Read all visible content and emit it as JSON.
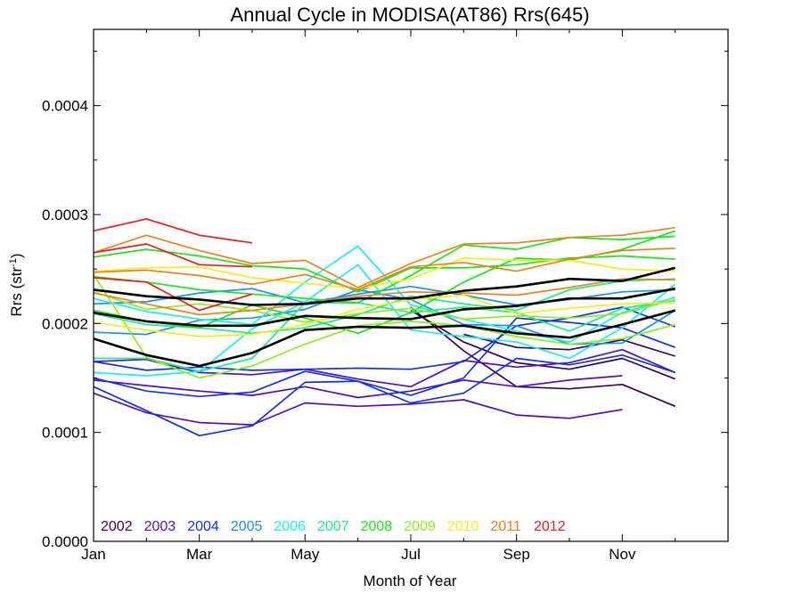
{
  "chart_data": {
    "type": "line",
    "title": "Annual Cycle in MODISA(AT86) Rrs(645)",
    "xlabel": "Month of Year",
    "ylabel_main": "Rrs (str",
    "ylabel_sup": "-1",
    "ylabel_tail": ")",
    "xlim": [
      1,
      13
    ],
    "ylim": [
      0,
      0.00047
    ],
    "x_ticks": [
      {
        "value": 1,
        "label": "Jan"
      },
      {
        "value": 3,
        "label": "Mar"
      },
      {
        "value": 5,
        "label": "May"
      },
      {
        "value": 7,
        "label": "Jul"
      },
      {
        "value": 9,
        "label": "Sep"
      },
      {
        "value": 11,
        "label": "Nov"
      }
    ],
    "y_ticks": [
      {
        "value": 0,
        "label": "0.0000"
      },
      {
        "value": 0.0001,
        "label": "0.0001"
      },
      {
        "value": 0.0002,
        "label": "0.0002"
      },
      {
        "value": 0.0003,
        "label": "0.0003"
      },
      {
        "value": 0.0004,
        "label": "0.0004"
      }
    ],
    "legend": [
      {
        "name": "2002",
        "color": "#3a0058"
      },
      {
        "name": "2003",
        "color": "#4a10c8"
      },
      {
        "name": "2004",
        "color": "#1030f0"
      },
      {
        "name": "2005",
        "color": "#1890f0"
      },
      {
        "name": "2006",
        "color": "#18f0f0"
      },
      {
        "name": "2007",
        "color": "#18f080"
      },
      {
        "name": "2008",
        "color": "#18e818"
      },
      {
        "name": "2009",
        "color": "#88f018"
      },
      {
        "name": "2010",
        "color": "#f0f018"
      },
      {
        "name": "2011",
        "color": "#f08018"
      },
      {
        "name": "2012",
        "color": "#f01818"
      }
    ],
    "series": [
      {
        "color": "#3a0058",
        "x": [
          7,
          8,
          9,
          10,
          11,
          12
        ],
        "values": [
          0.000215,
          0.000175,
          0.000142,
          0.00014,
          0.000144,
          0.000124
        ]
      },
      {
        "color": "#3a0058",
        "x": [
          7,
          8,
          9,
          10,
          11,
          12
        ],
        "values": [
          0.000212,
          0.000183,
          0.000164,
          0.000158,
          0.000168,
          0.000149
        ]
      },
      {
        "color": "#3a0058",
        "x": [
          8,
          9,
          10,
          11,
          12
        ],
        "values": [
          0.00019,
          0.000178,
          0.000176,
          0.000185,
          0.00017
        ]
      },
      {
        "color": "#4a10c8",
        "x": [
          1,
          2,
          3,
          4,
          5,
          6,
          7,
          8,
          9,
          10,
          11
        ],
        "values": [
          0.000136,
          0.000118,
          0.000109,
          0.000107,
          0.000127,
          0.000124,
          0.000126,
          0.00013,
          0.000116,
          0.000113,
          0.000121
        ]
      },
      {
        "color": "#4a10c8",
        "x": [
          1,
          2,
          3,
          4,
          5,
          6,
          7,
          8,
          9,
          10,
          11
        ],
        "values": [
          0.000148,
          0.000143,
          0.000138,
          0.000134,
          0.000142,
          0.000132,
          0.000138,
          0.000148,
          0.000142,
          0.000148,
          0.000152
        ]
      },
      {
        "color": "#4a10c8",
        "x": [
          1,
          2,
          3,
          4,
          5,
          6,
          7,
          8,
          9,
          10,
          11,
          12
        ],
        "values": [
          0.000165,
          0.000167,
          0.000155,
          0.000153,
          0.000158,
          0.000149,
          0.000142,
          0.000166,
          0.00016,
          0.000164,
          0.000176,
          0.000155
        ]
      },
      {
        "color": "#1030f0",
        "x": [
          1,
          2,
          3,
          4,
          5,
          6,
          7,
          8,
          9,
          10,
          11,
          12
        ],
        "values": [
          0.000142,
          0.00012,
          9.7e-05,
          0.000106,
          0.000146,
          0.000147,
          0.000127,
          0.000136,
          0.000168,
          0.000162,
          0.000171,
          0.000155
        ]
      },
      {
        "color": "#1030f0",
        "x": [
          1,
          2,
          3,
          4,
          5,
          6,
          7,
          8,
          9,
          10,
          11,
          12
        ],
        "values": [
          0.00015,
          0.000138,
          0.000133,
          0.000137,
          0.000156,
          0.000147,
          0.000134,
          0.00015,
          0.000205,
          0.000201,
          0.000196,
          0.000178
        ]
      },
      {
        "color": "#1030f0",
        "x": [
          1,
          2,
          3,
          4,
          5,
          6,
          7,
          8,
          9,
          10,
          11,
          12
        ],
        "values": [
          0.000165,
          0.000157,
          0.00016,
          0.000157,
          0.000158,
          0.000159,
          0.000158,
          0.000165,
          0.000198,
          0.000205,
          0.000215,
          0.000197
        ]
      },
      {
        "color": "#1890f0",
        "x": [
          1,
          2,
          3,
          4,
          5,
          6,
          7,
          8,
          9,
          10,
          11,
          12
        ],
        "values": [
          0.000192,
          0.00019,
          0.000203,
          0.000205,
          0.000213,
          0.000231,
          0.000222,
          0.000199,
          0.000198,
          0.000181,
          0.000182,
          0.000212
        ]
      },
      {
        "color": "#1890f0",
        "x": [
          1,
          2,
          3,
          4,
          5,
          6,
          7,
          8,
          9,
          10,
          11,
          12
        ],
        "values": [
          0.000218,
          0.00022,
          0.000228,
          0.000232,
          0.000219,
          0.000227,
          0.000234,
          0.000226,
          0.000217,
          0.000222,
          0.000229,
          0.000231
        ]
      },
      {
        "color": "#18f0f0",
        "x": [
          1,
          2,
          3,
          4,
          5,
          6,
          7,
          8,
          9,
          10,
          11,
          12
        ],
        "values": [
          0.000155,
          0.000152,
          0.000156,
          0.000195,
          0.00022,
          0.000254,
          0.000194,
          0.000188,
          0.000183,
          0.000168,
          0.000196,
          0.000236
        ]
      },
      {
        "color": "#18f0f0",
        "x": [
          1,
          2,
          3,
          4,
          5,
          6,
          7,
          8,
          9,
          10,
          11,
          12
        ],
        "values": [
          0.000223,
          0.000211,
          0.000204,
          0.000199,
          0.000238,
          0.000271,
          0.000217,
          0.000204,
          0.000193,
          0.000183,
          0.00021,
          0.000224
        ]
      },
      {
        "color": "#18f080",
        "x": [
          1,
          2,
          3,
          4,
          5,
          6,
          7,
          8,
          9,
          10,
          11,
          12
        ],
        "values": [
          0.000168,
          0.000168,
          0.000156,
          0.000168,
          0.000219,
          0.000219,
          0.00021,
          0.000215,
          0.00021,
          0.000193,
          0.000214,
          0.000221
        ]
      },
      {
        "color": "#18f080",
        "x": [
          1,
          2,
          3,
          4,
          5,
          6,
          7,
          8,
          9,
          10,
          11,
          12
        ],
        "values": [
          0.000209,
          0.000199,
          0.000196,
          0.000191,
          0.000196,
          0.000208,
          0.000225,
          0.000218,
          0.000212,
          0.000231,
          0.000239,
          0.000241
        ]
      },
      {
        "color": "#18e818",
        "x": [
          1,
          2,
          3,
          4,
          5,
          6,
          7,
          8,
          9,
          10,
          11,
          12
        ],
        "values": [
          0.000261,
          0.000268,
          0.000262,
          0.000253,
          0.00025,
          0.000229,
          0.000251,
          0.000251,
          0.000254,
          0.00026,
          0.000262,
          0.000259
        ]
      },
      {
        "color": "#18e818",
        "x": [
          1,
          2,
          3,
          4,
          5,
          6,
          7,
          8,
          9,
          10,
          11,
          12
        ],
        "values": [
          0.000212,
          0.000202,
          0.000196,
          0.000217,
          0.000205,
          0.000191,
          0.00021,
          0.000238,
          0.00026,
          0.000258,
          0.000268,
          0.000285
        ]
      },
      {
        "color": "#18e818",
        "x": [
          1,
          2,
          3,
          4,
          5,
          6,
          7,
          8,
          9,
          10,
          11,
          12
        ],
        "values": [
          0.000243,
          0.000238,
          0.000231,
          0.000227,
          0.000223,
          0.000219,
          0.000244,
          0.000272,
          0.000268,
          0.000279,
          0.000277,
          0.00028
        ]
      },
      {
        "color": "#88f018",
        "x": [
          1,
          2,
          3,
          4,
          5,
          6,
          7,
          8,
          9,
          10,
          11,
          12
        ],
        "values": [
          0.000245,
          0.000169,
          0.00015,
          0.000161,
          0.000181,
          0.000198,
          0.000202,
          0.000198,
          0.000188,
          0.000181,
          0.000186,
          0.000199
        ]
      },
      {
        "color": "#88f018",
        "x": [
          1,
          2,
          3,
          4,
          5,
          6,
          7,
          8,
          9,
          10,
          11,
          12
        ],
        "values": [
          0.000229,
          0.000213,
          0.000218,
          0.000212,
          0.000201,
          0.000209,
          0.000214,
          0.000204,
          0.000207,
          0.000205,
          0.000209,
          0.000222
        ]
      },
      {
        "color": "#f0f018",
        "x": [
          1,
          2,
          3,
          4,
          5,
          6,
          7,
          8,
          9,
          10,
          11,
          12
        ],
        "values": [
          0.000201,
          0.000194,
          0.000188,
          0.00019,
          0.000199,
          0.000213,
          0.000222,
          0.000226,
          0.000209,
          0.000214,
          0.000218,
          0.000219
        ]
      },
      {
        "color": "#f0f018",
        "x": [
          1,
          2,
          3,
          4,
          5,
          6,
          7,
          8,
          9,
          10,
          11,
          12
        ],
        "values": [
          0.000248,
          0.000251,
          0.000252,
          0.000242,
          0.000237,
          0.000232,
          0.000241,
          0.00026,
          0.000258,
          0.000258,
          0.00025,
          0.000248
        ]
      },
      {
        "color": "#f08018",
        "x": [
          1,
          2,
          3,
          4,
          5,
          6,
          7,
          8,
          9,
          10,
          11,
          12
        ],
        "values": [
          0.000265,
          0.000281,
          0.000267,
          0.000255,
          0.000258,
          0.000233,
          0.000255,
          0.000273,
          0.000274,
          0.000279,
          0.000281,
          0.000288
        ]
      },
      {
        "color": "#f08018",
        "x": [
          1,
          2,
          3,
          4,
          5,
          6,
          7,
          8,
          9,
          10,
          11,
          12
        ],
        "values": [
          0.000247,
          0.000249,
          0.000244,
          0.000236,
          0.000245,
          0.000231,
          0.000252,
          0.000256,
          0.000248,
          0.000259,
          0.000267,
          0.000269
        ]
      },
      {
        "color": "#f08018",
        "x": [
          1,
          2,
          3,
          4,
          5,
          6,
          7,
          8,
          9,
          10,
          11,
          12
        ],
        "values": [
          0.000228,
          0.000218,
          0.000208,
          0.000212,
          0.000218,
          0.000225,
          0.000229,
          0.000228,
          0.000226,
          0.000233,
          0.000241,
          0.00024
        ]
      },
      {
        "color": "#f01818",
        "x": [
          1,
          2,
          3,
          4
        ],
        "values": [
          0.000285,
          0.000296,
          0.000281,
          0.000274
        ]
      },
      {
        "color": "#f01818",
        "x": [
          1,
          2,
          3,
          4
        ],
        "values": [
          0.000265,
          0.000273,
          0.000254,
          0.000252
        ]
      },
      {
        "color": "#f01818",
        "x": [
          1,
          2,
          3,
          4
        ],
        "values": [
          0.000242,
          0.000238,
          0.000212,
          0.000227
        ]
      },
      {
        "color": "#000000",
        "width": 2.6,
        "x": [
          1,
          2,
          3,
          4,
          5,
          6,
          7,
          8,
          9,
          10,
          11,
          12
        ],
        "values": [
          0.000231,
          0.000225,
          0.000222,
          0.000217,
          0.000218,
          0.000223,
          0.000223,
          0.00023,
          0.000234,
          0.000241,
          0.000239,
          0.000251
        ]
      },
      {
        "color": "#000000",
        "width": 2.6,
        "x": [
          1,
          2,
          3,
          4,
          5,
          6,
          7,
          8,
          9,
          10,
          11,
          12
        ],
        "values": [
          0.00021,
          0.000202,
          0.000198,
          0.000198,
          0.000207,
          0.000205,
          0.000204,
          0.000213,
          0.000216,
          0.000223,
          0.000223,
          0.000232
        ]
      },
      {
        "color": "#000000",
        "width": 2.6,
        "x": [
          1,
          2,
          3,
          4,
          5,
          6,
          7,
          8,
          9,
          10,
          11,
          12
        ],
        "values": [
          0.000186,
          0.000171,
          0.000161,
          0.000173,
          0.000194,
          0.000197,
          0.000196,
          0.000198,
          0.000191,
          0.000187,
          0.000199,
          0.000212
        ]
      }
    ]
  }
}
